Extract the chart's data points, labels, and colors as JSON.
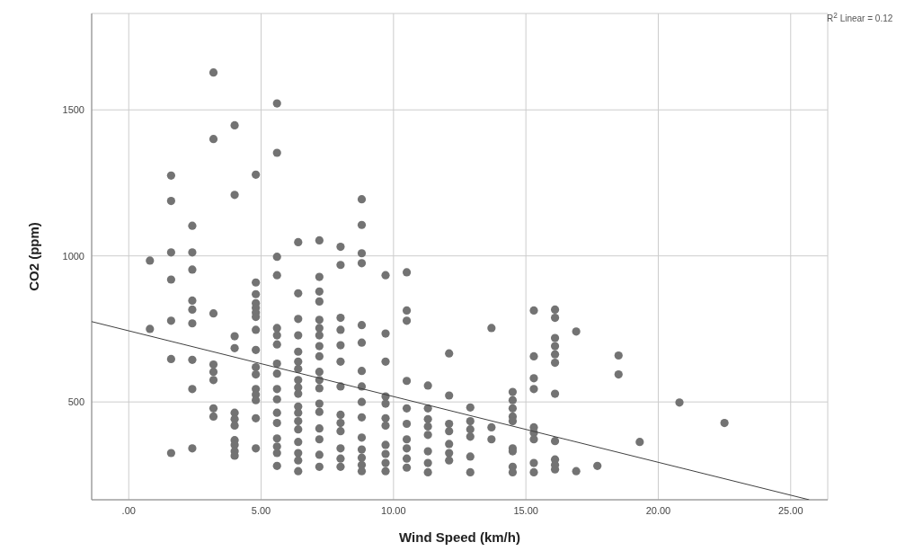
{
  "chart_data": {
    "type": "scatter",
    "xlabel": "Wind Speed (km/h)",
    "ylabel": "CO2 (ppm)",
    "annotations": [
      "R$^{2}$ Linear = 0.12"
    ],
    "xlim": [
      -1.4,
      26.4
    ],
    "ylim": [
      165,
      1830
    ],
    "xticks": [
      {
        "value": 0,
        "label": ".00"
      },
      {
        "value": 5,
        "label": "5.00"
      },
      {
        "value": 10,
        "label": "10.00"
      },
      {
        "value": 15,
        "label": "15.00"
      },
      {
        "value": 20,
        "label": "20.00"
      },
      {
        "value": 25,
        "label": "25.00"
      }
    ],
    "yticks": [
      500,
      1000,
      1500
    ],
    "grid": true,
    "legend": false,
    "series": [
      {
        "color": "#737373",
        "marker": "circle",
        "x": [
          0.8,
          0.8,
          1.6,
          1.6,
          1.6,
          1.6,
          1.6,
          1.6,
          1.6,
          2.4,
          2.4,
          2.4,
          2.4,
          2.4,
          2.4,
          2.4,
          2.4,
          2.4,
          3.2,
          3.2,
          3.2,
          3.2,
          3.2,
          3.2,
          3.2,
          3.2,
          4.0,
          4.0,
          4.0,
          4.0,
          4.0,
          4.0,
          4.0,
          4.0,
          4.0,
          4.0,
          4.0,
          4.8,
          4.8,
          4.8,
          4.8,
          4.8,
          4.8,
          4.8,
          4.8,
          4.8,
          4.8,
          4.8,
          4.8,
          4.8,
          4.8,
          4.8,
          4.8,
          5.6,
          5.6,
          5.6,
          5.6,
          5.6,
          5.6,
          5.6,
          5.6,
          5.6,
          5.6,
          5.6,
          5.6,
          5.6,
          5.6,
          5.6,
          5.6,
          5.6,
          6.4,
          6.4,
          6.4,
          6.4,
          6.4,
          6.4,
          6.4,
          6.4,
          6.4,
          6.4,
          6.4,
          6.4,
          6.4,
          6.4,
          6.4,
          6.4,
          6.4,
          6.4,
          7.2,
          7.2,
          7.2,
          7.2,
          7.2,
          7.2,
          7.2,
          7.2,
          7.2,
          7.2,
          7.2,
          7.2,
          7.2,
          7.2,
          7.2,
          7.2,
          7.2,
          7.2,
          8.0,
          8.0,
          8.0,
          8.0,
          8.0,
          8.0,
          8.0,
          8.0,
          8.0,
          8.0,
          8.0,
          8.0,
          8.0,
          8.8,
          8.8,
          8.8,
          8.8,
          8.8,
          8.8,
          8.8,
          8.8,
          8.8,
          8.8,
          8.8,
          8.8,
          8.8,
          8.8,
          8.8,
          9.7,
          9.7,
          9.7,
          9.7,
          9.7,
          9.7,
          9.7,
          9.7,
          9.7,
          9.7,
          9.7,
          10.5,
          10.5,
          10.5,
          10.5,
          10.5,
          10.5,
          10.5,
          10.5,
          10.5,
          10.5,
          11.3,
          11.3,
          11.3,
          11.3,
          11.3,
          11.3,
          11.3,
          11.3,
          12.1,
          12.1,
          12.1,
          12.1,
          12.1,
          12.1,
          12.1,
          12.9,
          12.9,
          12.9,
          12.9,
          12.9,
          12.9,
          13.7,
          13.7,
          13.7,
          14.5,
          14.5,
          14.5,
          14.5,
          14.5,
          14.5,
          14.5,
          14.5,
          14.5,
          15.3,
          15.3,
          15.3,
          15.3,
          15.3,
          15.3,
          15.3,
          15.3,
          15.3,
          16.1,
          16.1,
          16.1,
          16.1,
          16.1,
          16.1,
          16.1,
          16.1,
          16.1,
          16.1,
          16.1,
          16.9,
          16.9,
          17.7,
          18.5,
          18.5,
          19.3,
          20.8,
          22.5
        ],
        "values": [
          984,
          750,
          1275,
          1188,
          1012,
          919,
          778,
          647,
          325,
          1103,
          1012,
          953,
          847,
          816,
          769,
          644,
          544,
          341,
          1628,
          1400,
          803,
          628,
          603,
          575,
          478,
          450,
          1447,
          1209,
          725,
          684,
          463,
          441,
          419,
          369,
          353,
          331,
          316,
          1278,
          909,
          869,
          838,
          822,
          806,
          791,
          747,
          678,
          619,
          594,
          544,
          525,
          506,
          444,
          341,
          1522,
          1353,
          997,
          934,
          753,
          728,
          697,
          631,
          597,
          544,
          509,
          463,
          428,
          375,
          347,
          325,
          281,
          1047,
          872,
          784,
          728,
          672,
          638,
          613,
          575,
          550,
          528,
          484,
          463,
          434,
          406,
          363,
          325,
          300,
          263,
          1053,
          928,
          878,
          844,
          781,
          753,
          728,
          691,
          656,
          603,
          575,
          547,
          494,
          466,
          409,
          372,
          319,
          278,
          1031,
          969,
          788,
          747,
          694,
          638,
          553,
          456,
          428,
          400,
          341,
          306,
          278,
          1194,
          1106,
          1009,
          975,
          763,
          703,
          606,
          553,
          500,
          447,
          378,
          337,
          309,
          284,
          263,
          934,
          734,
          638,
          519,
          494,
          444,
          419,
          353,
          322,
          291,
          263,
          944,
          813,
          778,
          572,
          478,
          425,
          372,
          341,
          306,
          275,
          556,
          478,
          441,
          416,
          387,
          331,
          291,
          259,
          666,
          522,
          425,
          400,
          356,
          325,
          300,
          481,
          434,
          406,
          381,
          313,
          259,
          753,
          413,
          372,
          534,
          506,
          478,
          450,
          434,
          341,
          331,
          278,
          259,
          813,
          656,
          581,
          544,
          413,
          394,
          372,
          291,
          259,
          816,
          788,
          719,
          691,
          663,
          634,
          528,
          366,
          303,
          284,
          269,
          741,
          263,
          281,
          659,
          594,
          363,
          498,
          428
        ]
      },
      {
        "type": "line",
        "marker": "none",
        "color": "#404040",
        "x": [
          -1.4,
          25.7
        ],
        "values": [
          775,
          165
        ]
      }
    ]
  }
}
